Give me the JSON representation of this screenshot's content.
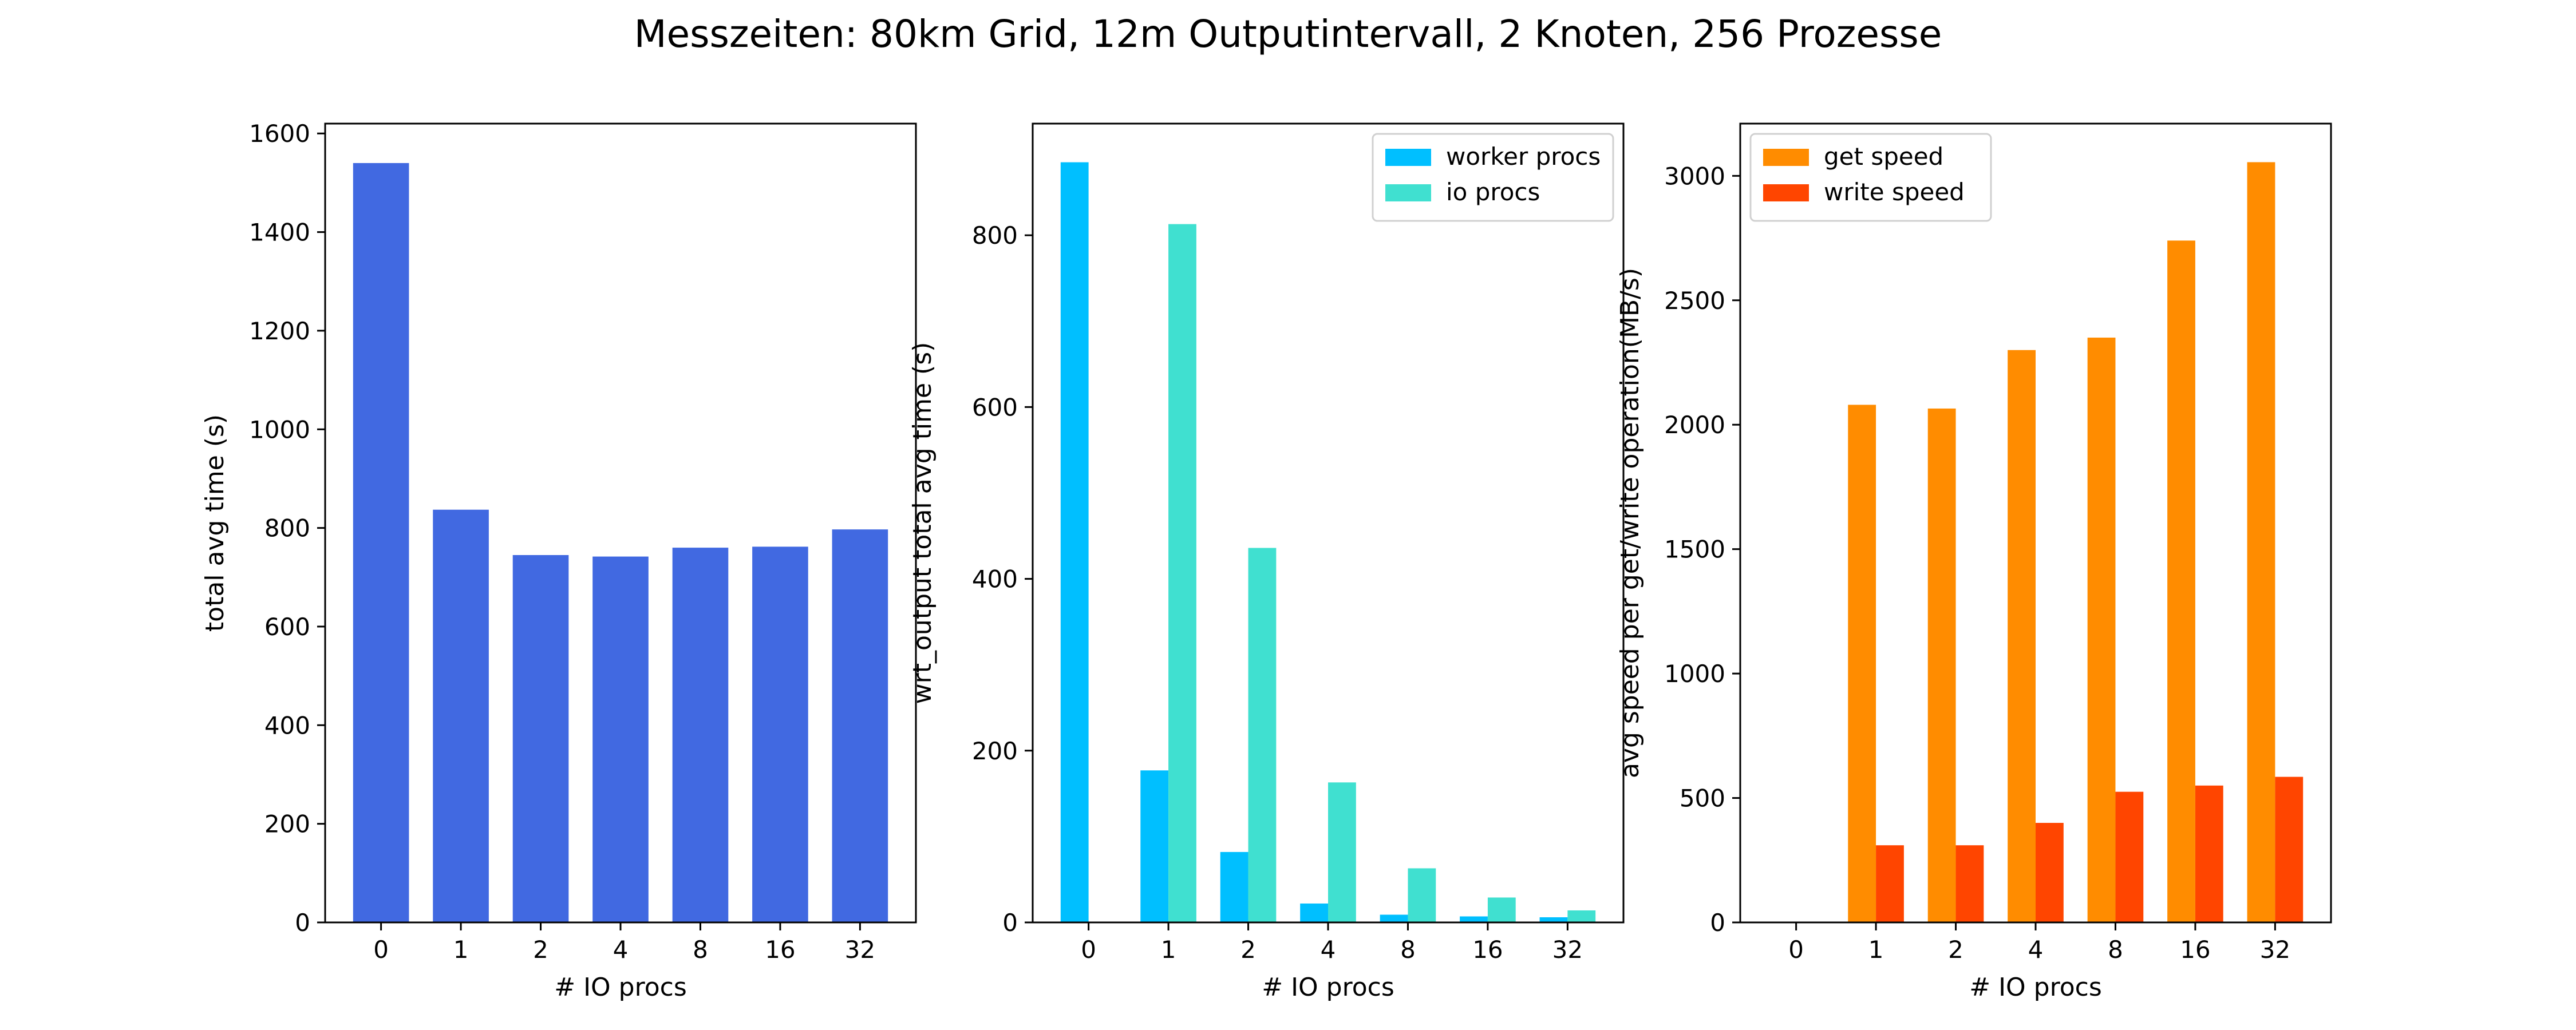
{
  "figure": {
    "title": "Messzeiten: 80km Grid, 12m Outputintervall, 2 Knoten, 256 Prozesse"
  },
  "chart_data": [
    {
      "type": "bar",
      "categories": [
        "0",
        "1",
        "2",
        "4",
        "8",
        "16",
        "32"
      ],
      "xlabel": "# IO procs",
      "ylabel": "total avg time (s)",
      "ylim": [
        0,
        1620
      ],
      "yticks": [
        0,
        200,
        400,
        600,
        800,
        1000,
        1200,
        1400,
        1600
      ],
      "grid": false,
      "series": [
        {
          "values": [
            1540,
            837,
            745,
            742,
            760,
            762,
            797
          ],
          "color": "#4169e1"
        }
      ]
    },
    {
      "type": "bar",
      "categories": [
        "0",
        "1",
        "2",
        "4",
        "8",
        "16",
        "32"
      ],
      "xlabel": "# IO procs",
      "ylabel": "wrt_output total avg time (s)",
      "ylim": [
        0,
        930
      ],
      "yticks": [
        0,
        200,
        400,
        600,
        800
      ],
      "grid": false,
      "legend": "top-right",
      "series": [
        {
          "name": "worker procs",
          "values": [
            885,
            177,
            82,
            22,
            9,
            7,
            6
          ],
          "color": "#00bfff"
        },
        {
          "name": "io procs",
          "values": [
            0,
            813,
            436,
            163,
            63,
            29,
            14
          ],
          "color": "#40e0d0"
        }
      ]
    },
    {
      "type": "bar",
      "categories": [
        "0",
        "1",
        "2",
        "4",
        "8",
        "16",
        "32"
      ],
      "xlabel": "# IO procs",
      "ylabel": "avg speed per get/write operation(MB/s)",
      "ylim": [
        0,
        3210
      ],
      "yticks": [
        0,
        500,
        1000,
        1500,
        2000,
        2500,
        3000
      ],
      "grid": false,
      "legend": "top-left",
      "series": [
        {
          "name": "get speed",
          "values": [
            0,
            2080,
            2065,
            2300,
            2350,
            2740,
            3055
          ],
          "color": "#ff8c00"
        },
        {
          "name": "write speed",
          "values": [
            0,
            310,
            310,
            400,
            525,
            550,
            585
          ],
          "color": "#ff4500"
        }
      ]
    }
  ]
}
